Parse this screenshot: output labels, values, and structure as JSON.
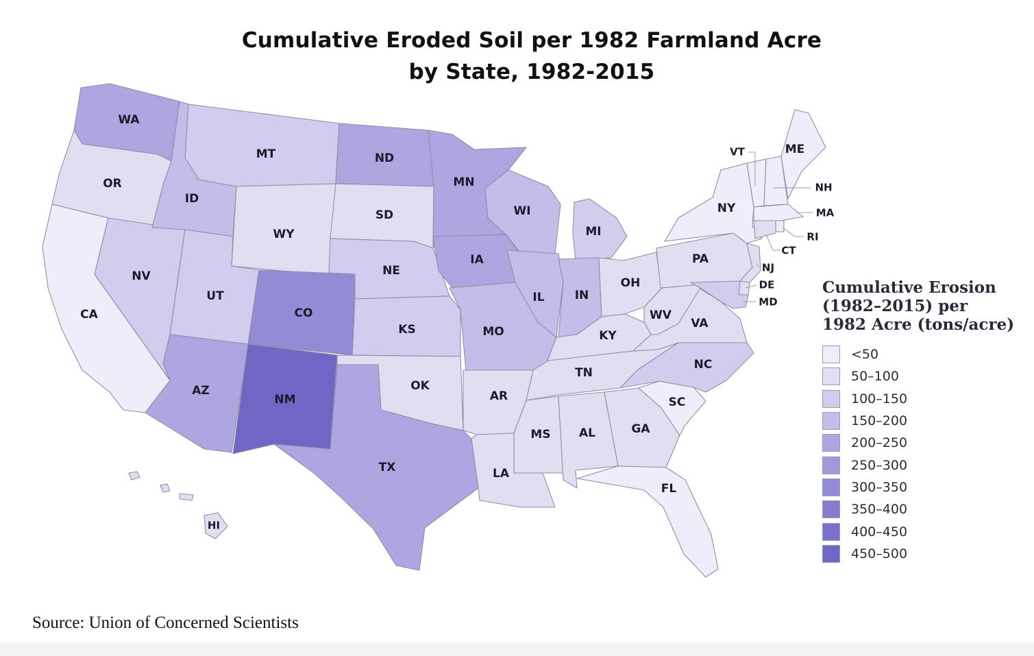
{
  "title": {
    "line1": "Cumulative Eroded Soil per 1982 Farmland Acre",
    "line2": "by State, 1982-2015"
  },
  "legend": {
    "title_line1": "Cumulative Erosion",
    "title_line2": "(1982–2015) per",
    "title_line3": "1982 Acre (tons/acre)",
    "items": [
      {
        "label": "<50",
        "color": "#efedf9"
      },
      {
        "label": "50–100",
        "color": "#e1def2"
      },
      {
        "label": "100–150",
        "color": "#d2cdee"
      },
      {
        "label": "150–200",
        "color": "#c3bde9"
      },
      {
        "label": "200–250",
        "color": "#aea6e0"
      },
      {
        "label": "250–300",
        "color": "#a199dc"
      },
      {
        "label": "300–350",
        "color": "#938bd6"
      },
      {
        "label": "350–400",
        "color": "#857cd0"
      },
      {
        "label": "400–450",
        "color": "#7a71cc"
      },
      {
        "label": "450–500",
        "color": "#6f66c6"
      }
    ]
  },
  "states": {
    "WA": {
      "label": "WA",
      "bin": "200–250"
    },
    "OR": {
      "label": "OR",
      "bin": "50–100"
    },
    "CA": {
      "label": "CA",
      "bin": "<50"
    },
    "NV": {
      "label": "NV",
      "bin": "100–150"
    },
    "ID": {
      "label": "ID",
      "bin": "150–200"
    },
    "MT": {
      "label": "MT",
      "bin": "100–150"
    },
    "WY": {
      "label": "WY",
      "bin": "50–100"
    },
    "UT": {
      "label": "UT",
      "bin": "100–150"
    },
    "AZ": {
      "label": "AZ",
      "bin": "200–250"
    },
    "CO": {
      "label": "CO",
      "bin": "300–350"
    },
    "NM": {
      "label": "NM",
      "bin": "450–500"
    },
    "ND": {
      "label": "ND",
      "bin": "200–250"
    },
    "SD": {
      "label": "SD",
      "bin": "50–100"
    },
    "NE": {
      "label": "NE",
      "bin": "100–150"
    },
    "KS": {
      "label": "KS",
      "bin": "100–150"
    },
    "OK": {
      "label": "OK",
      "bin": "50–100"
    },
    "TX": {
      "label": "TX",
      "bin": "200–250"
    },
    "MN": {
      "label": "MN",
      "bin": "200–250"
    },
    "IA": {
      "label": "IA",
      "bin": "200–250"
    },
    "MO": {
      "label": "MO",
      "bin": "150–200"
    },
    "AR": {
      "label": "AR",
      "bin": "50–100"
    },
    "LA": {
      "label": "LA",
      "bin": "50–100"
    },
    "WI": {
      "label": "WI",
      "bin": "150–200"
    },
    "IL": {
      "label": "IL",
      "bin": "150–200"
    },
    "MI": {
      "label": "MI",
      "bin": "100–150"
    },
    "IN": {
      "label": "IN",
      "bin": "150–200"
    },
    "OH": {
      "label": "OH",
      "bin": "50–100"
    },
    "KY": {
      "label": "KY",
      "bin": "50–100"
    },
    "TN": {
      "label": "TN",
      "bin": "50–100"
    },
    "MS": {
      "label": "MS",
      "bin": "50–100"
    },
    "AL": {
      "label": "AL",
      "bin": "50–100"
    },
    "GA": {
      "label": "GA",
      "bin": "50–100"
    },
    "FL": {
      "label": "FL",
      "bin": "<50"
    },
    "SC": {
      "label": "SC",
      "bin": "<50"
    },
    "NC": {
      "label": "NC",
      "bin": "100–150"
    },
    "VA": {
      "label": "VA",
      "bin": "50–100"
    },
    "WV": {
      "label": "WV",
      "bin": "50–100"
    },
    "PA": {
      "label": "PA",
      "bin": "50–100"
    },
    "NY": {
      "label": "NY",
      "bin": "<50"
    },
    "VT": {
      "label": "VT",
      "bin": "<50"
    },
    "NH": {
      "label": "NH",
      "bin": "<50"
    },
    "ME": {
      "label": "ME",
      "bin": "<50"
    },
    "MA": {
      "label": "MA",
      "bin": "<50"
    },
    "RI": {
      "label": "RI",
      "bin": "<50"
    },
    "CT": {
      "label": "CT",
      "bin": "50–100"
    },
    "NJ": {
      "label": "NJ",
      "bin": "50–100"
    },
    "DE": {
      "label": "DE",
      "bin": "50–100"
    },
    "MD": {
      "label": "MD",
      "bin": "100–150"
    },
    "HI": {
      "label": "HI",
      "bin": "50–100"
    }
  },
  "source": "Source: Union of Concerned Scientists"
}
